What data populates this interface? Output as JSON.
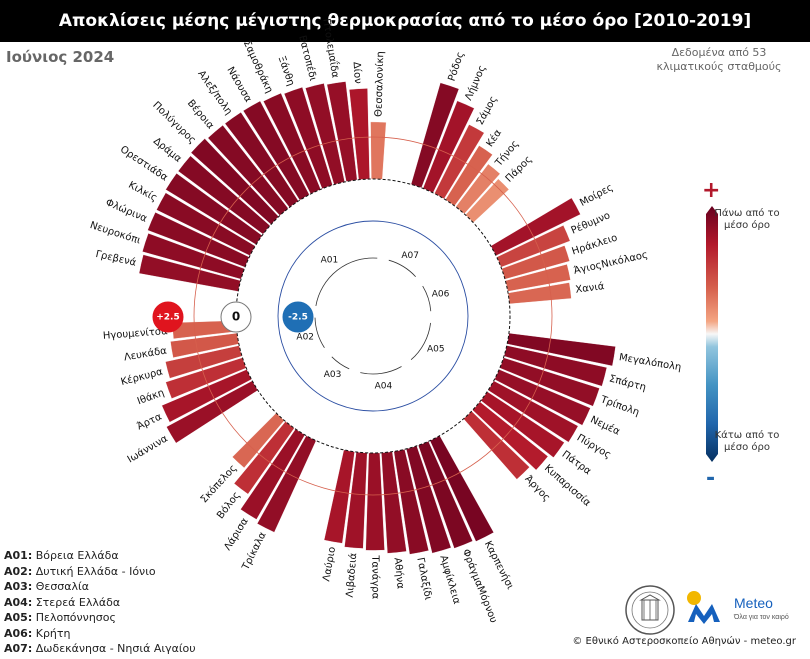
{
  "header": {
    "title": "Αποκλίσεις μέσης μέγιστης θερμοκρασίας από το μέσο όρο [2010-2019]",
    "subtitle": "Ιούνιος 2024",
    "note": "Δεδομένα από 53 κλιματικούς σταθμούς"
  },
  "colorbar": {
    "plus": "+",
    "minus": "-",
    "top_label": "Πάνω από το μέσο όρο",
    "bottom_label": "Κάτω από το μέσο όρο",
    "top_color": "#67001f",
    "mid_color": "#f7f7f7",
    "bottom_color": "#053061"
  },
  "reference_labels": {
    "plus": "+2.5",
    "zero": "0",
    "minus": "-2.5"
  },
  "legend": [
    {
      "code": "A01:",
      "name": "Βόρεια Ελλάδα"
    },
    {
      "code": "A02:",
      "name": "Δυτική Ελλάδα - Ιόνιο"
    },
    {
      "code": "A03:",
      "name": "Θεσσαλία"
    },
    {
      "code": "A04:",
      "name": "Στερεά Ελλάδα"
    },
    {
      "code": "A05:",
      "name": "Πελοπόννησος"
    },
    {
      "code": "A06:",
      "name": "Κρήτη"
    },
    {
      "code": "A07:",
      "name": "Δωδεκάνησα - Νησιά Αιγαίου"
    }
  ],
  "footer": "© Εθνικό Αστεροσκοπείο Αθηνών - meteo.gr",
  "logo": {
    "name": "Meteo",
    "tagline": "Όλα για τον καιρό"
  },
  "chart_data": {
    "type": "bar",
    "layout": "circular",
    "title": "Αποκλίσεις μέσης μέγιστης θερμοκρασίας από το μέσο όρο [2010-2019]",
    "reference_circles": [
      2.5,
      0,
      -2.5
    ],
    "groups": [
      {
        "code": "A01",
        "name": "Βόρεια Ελλάδα",
        "stations": [
          {
            "name": "Γρεβενά",
            "value": 6.0
          },
          {
            "name": "Νευροκόπι",
            "value": 6.1
          },
          {
            "name": "Φλώρινα",
            "value": 6.2
          },
          {
            "name": "Κιλκίς",
            "value": 6.2
          },
          {
            "name": "Ορεστιάδα",
            "value": 6.3
          },
          {
            "name": "Δράμα",
            "value": 6.3
          },
          {
            "name": "Πολύγυρος",
            "value": 6.4
          },
          {
            "name": "Βέροια",
            "value": 6.3
          },
          {
            "name": "Αλεξ/πολη",
            "value": 6.3
          },
          {
            "name": "Νάουσα",
            "value": 6.3
          },
          {
            "name": "Σαμοθράκη",
            "value": 6.2
          },
          {
            "name": "Ξάνθη",
            "value": 6.1
          },
          {
            "name": "Βατοπέδι",
            "value": 6.0
          },
          {
            "name": "Πτολεμαΐδα",
            "value": 5.9
          },
          {
            "name": "Δίον",
            "value": 5.4
          },
          {
            "name": "Θεσσαλονίκη",
            "value": 3.4
          }
        ]
      },
      {
        "code": "A07",
        "name": "Δωδεκάνησα - Νησιά Αιγαίου",
        "stations": [
          {
            "name": "Ρόδος",
            "value": 6.3
          },
          {
            "name": "Λήμνος",
            "value": 5.6
          },
          {
            "name": "Σάμος",
            "value": 4.6
          },
          {
            "name": "Κέα",
            "value": 3.8
          },
          {
            "name": "Τήνος",
            "value": 3.2
          },
          {
            "name": "Πάρος",
            "value": 2.9
          }
        ]
      },
      {
        "code": "A06",
        "name": "Κρήτη",
        "stations": [
          {
            "name": "Μοίρες",
            "value": 5.6
          },
          {
            "name": "Ρέθυμνο",
            "value": 4.4
          },
          {
            "name": "Ηράκλειο",
            "value": 4.0
          },
          {
            "name": "ΆγιοςΝικόλαος",
            "value": 3.8
          },
          {
            "name": "Χανιά",
            "value": 3.7
          }
        ]
      },
      {
        "code": "A05",
        "name": "Πελοπόννησος",
        "stations": [
          {
            "name": "Μεγαλόπολη",
            "value": 6.4
          },
          {
            "name": "Σπάρτη",
            "value": 6.1
          },
          {
            "name": "Τρίπολη",
            "value": 6.0
          },
          {
            "name": "Νεμέα",
            "value": 5.9
          },
          {
            "name": "Πύργος",
            "value": 5.7
          },
          {
            "name": "Πάτρα",
            "value": 5.5
          },
          {
            "name": "Κυπαρισσία",
            "value": 5.2
          },
          {
            "name": "Άργος",
            "value": 4.8
          }
        ]
      },
      {
        "code": "A04",
        "name": "Στερεά Ελλάδα",
        "stations": [
          {
            "name": "Καρπενήσι",
            "value": 6.6
          },
          {
            "name": "ΦράγμαΜόρνου",
            "value": 6.5
          },
          {
            "name": "Αμφίκλεια",
            "value": 6.4
          },
          {
            "name": "Γαλαξίδι",
            "value": 6.2
          },
          {
            "name": "Αθήνα",
            "value": 6.0
          },
          {
            "name": "Τανάγρα",
            "value": 5.8
          },
          {
            "name": "Λιβαδειά",
            "value": 5.7
          },
          {
            "name": "Λαύριο",
            "value": 5.5
          }
        ]
      },
      {
        "code": "A03",
        "name": "Θεσσαλία",
        "stations": [
          {
            "name": "Τρίκαλα",
            "value": 6.0
          },
          {
            "name": "Λάρισα",
            "value": 5.8
          },
          {
            "name": "Βόλος",
            "value": 4.8
          },
          {
            "name": "Σκόπελος",
            "value": 3.7
          }
        ]
      },
      {
        "code": "A02",
        "name": "Δυτική Ελλάδα - Ιόνιο",
        "stations": [
          {
            "name": "Ιωάννινα",
            "value": 5.8
          },
          {
            "name": "Άρτα",
            "value": 5.5
          },
          {
            "name": "Ιθάκη",
            "value": 4.8
          },
          {
            "name": "Κέρκυρα",
            "value": 4.5
          },
          {
            "name": "Λευκάδα",
            "value": 4.0
          },
          {
            "name": "Ηγουμενίτσα",
            "value": 3.8
          }
        ]
      }
    ]
  }
}
